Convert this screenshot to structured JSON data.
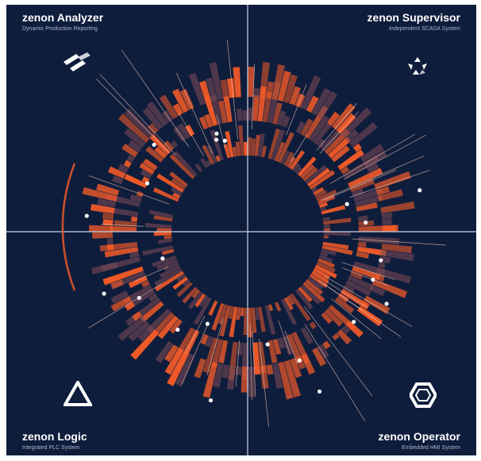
{
  "quadrants": {
    "top_left": {
      "title": "zenon Analyzer",
      "subtitle": "Dynamic Production Reporting",
      "icon": "analyzer-icon"
    },
    "top_right": {
      "title": "zenon Supervisor",
      "subtitle": "Independent SCADA System",
      "icon": "supervisor-icon"
    },
    "bottom_left": {
      "title": "zenon Logic",
      "subtitle": "Integrated PLC System",
      "icon": "logic-icon"
    },
    "bottom_right": {
      "title": "zenon Operator",
      "subtitle": "Embedded HMI System",
      "icon": "operator-icon"
    }
  },
  "colors": {
    "background": "#0f1d3c",
    "accent": "#f05a28",
    "accent_dim": "#7a4a55",
    "grid": "#c8d0e6"
  }
}
